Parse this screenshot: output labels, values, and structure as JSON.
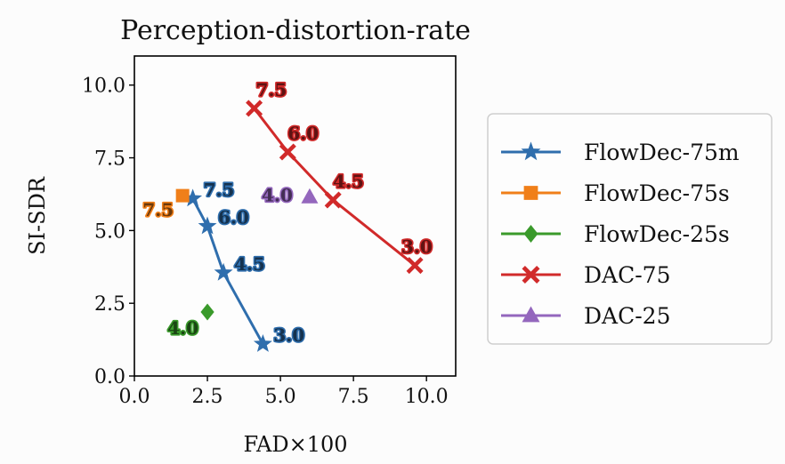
{
  "chart_data": {
    "type": "scatter",
    "title": "Perception-distortion-rate",
    "xlabel": "FAD×100",
    "ylabel": "SI-SDR",
    "xlim": [
      0.0,
      11.0
    ],
    "ylim": [
      0.0,
      11.0
    ],
    "xticks": [
      "0.0",
      "2.5",
      "5.0",
      "7.5",
      "10.0"
    ],
    "yticks": [
      "0.0",
      "2.5",
      "5.0",
      "7.5",
      "10.0"
    ],
    "grid": false,
    "legend_position": "outside-right",
    "series": [
      {
        "name": "FlowDec-75m",
        "color": "#2f6ead",
        "marker": "star",
        "line": true,
        "points": [
          {
            "x": 2.0,
            "y": 6.1,
            "label": "7.5"
          },
          {
            "x": 2.5,
            "y": 5.15,
            "label": "6.0"
          },
          {
            "x": 3.05,
            "y": 3.55,
            "label": "4.5"
          },
          {
            "x": 4.4,
            "y": 1.1,
            "label": "3.0"
          }
        ]
      },
      {
        "name": "FlowDec-75s",
        "color": "#f07f19",
        "marker": "square",
        "line": true,
        "points": [
          {
            "x": 1.65,
            "y": 6.2,
            "label": "7.5"
          }
        ]
      },
      {
        "name": "FlowDec-25s",
        "color": "#3a9a2b",
        "marker": "diamond",
        "line": true,
        "points": [
          {
            "x": 2.5,
            "y": 2.2,
            "label": "4.0"
          }
        ]
      },
      {
        "name": "DAC-75",
        "color": "#d12a2a",
        "marker": "x",
        "line": true,
        "points": [
          {
            "x": 4.1,
            "y": 9.2,
            "label": "7.5"
          },
          {
            "x": 5.25,
            "y": 7.7,
            "label": "6.0"
          },
          {
            "x": 6.8,
            "y": 6.05,
            "label": "4.5"
          },
          {
            "x": 9.6,
            "y": 3.8,
            "label": "3.0"
          }
        ]
      },
      {
        "name": "DAC-25",
        "color": "#9467bd",
        "marker": "triangle",
        "line": true,
        "points": [
          {
            "x": 6.0,
            "y": 6.15,
            "label": "4.0"
          }
        ]
      }
    ]
  }
}
